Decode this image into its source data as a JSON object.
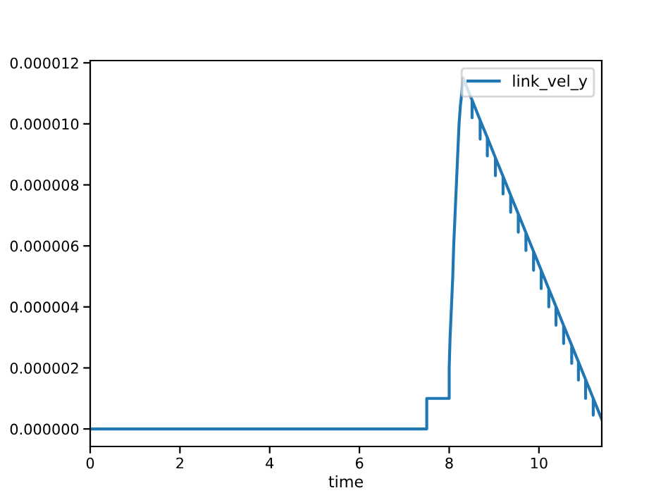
{
  "chart_data": {
    "type": "line",
    "xlabel": "time",
    "x": [
      0,
      7.5,
      7.5,
      8.0,
      8.0,
      8.02,
      8.05,
      8.08,
      8.1,
      8.13,
      8.16,
      8.19,
      8.22,
      8.25,
      8.28,
      8.31,
      8.51,
      8.51,
      8.51,
      8.69,
      8.69,
      8.69,
      8.85,
      8.85,
      8.85,
      9.03,
      9.03,
      9.03,
      9.2,
      9.2,
      9.2,
      9.37,
      9.37,
      9.37,
      9.54,
      9.54,
      9.54,
      9.71,
      9.71,
      9.71,
      9.88,
      9.88,
      9.88,
      10.05,
      10.05,
      10.05,
      10.22,
      10.22,
      10.22,
      10.38,
      10.38,
      10.38,
      10.55,
      10.55,
      10.55,
      10.73,
      10.73,
      10.73,
      10.88,
      10.88,
      10.88,
      11.04,
      11.04,
      11.04,
      11.21,
      11.21,
      11.21,
      11.4
    ],
    "series": [
      {
        "name": "link_vel_y",
        "color": "#1f77b4",
        "values": [
          0,
          0,
          1e-06,
          1e-06,
          2e-06,
          3e-06,
          4e-06,
          5e-06,
          6e-06,
          7e-06,
          8e-06,
          9e-06,
          1e-05,
          1.06e-05,
          1.1e-05,
          1.15e-05,
          1.078e-05,
          1.02e-05,
          1.078e-05,
          1.012e-05,
          9.5e-06,
          1.012e-05,
          9.55e-06,
          8.95e-06,
          9.55e-06,
          8.89e-06,
          8.3e-06,
          8.89e-06,
          8.28e-06,
          7.7e-06,
          8.28e-06,
          7.66e-06,
          7.1e-06,
          7.66e-06,
          7.05e-06,
          6.45e-06,
          7.05e-06,
          6.43e-06,
          5.85e-06,
          6.43e-06,
          5.82e-06,
          5.2e-06,
          5.82e-06,
          5.2e-06,
          4.6e-06,
          5.2e-06,
          4.59e-06,
          4e-06,
          4.59e-06,
          4.01e-06,
          3.4e-06,
          4.01e-06,
          3.39e-06,
          2.8e-06,
          3.39e-06,
          2.74e-06,
          2.15e-06,
          2.74e-06,
          2.2e-06,
          1.6e-06,
          2.2e-06,
          1.62e-06,
          1e-06,
          1.62e-06,
          1e-06,
          4.5e-07,
          1e-06,
          3.1e-07
        ]
      }
    ],
    "xlim": [
      0,
      11.4
    ],
    "ylim": [
      -5.75e-07,
      1.2075e-05
    ],
    "xticks": [
      0,
      2,
      4,
      6,
      8,
      10
    ],
    "yticks": [
      {
        "value": 0,
        "label": "0.000000"
      },
      {
        "value": 2e-06,
        "label": "0.000002"
      },
      {
        "value": 4e-06,
        "label": "0.000004"
      },
      {
        "value": 6e-06,
        "label": "0.000006"
      },
      {
        "value": 8e-06,
        "label": "0.000008"
      },
      {
        "value": 1e-05,
        "label": "0.000010"
      },
      {
        "value": 1.2e-05,
        "label": "0.000012"
      }
    ],
    "legend": "top right",
    "grid": false
  }
}
